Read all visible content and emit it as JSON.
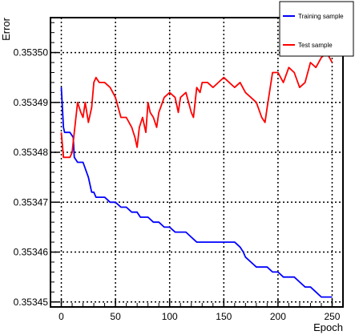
{
  "chart_data": {
    "type": "line",
    "title": "",
    "xlabel": "Epoch",
    "ylabel": "Error",
    "xlim": [
      -10,
      260
    ],
    "ylim": [
      0.353449,
      0.353507
    ],
    "xticks": [
      0,
      50,
      100,
      150,
      200,
      250
    ],
    "yticks": [
      0.35345,
      0.35346,
      0.35347,
      0.35348,
      0.35349,
      0.3535
    ],
    "ytick_labels": [
      "0.35345",
      "0.35346",
      "0.35347",
      "0.35348",
      "0.35349",
      "0.35350"
    ],
    "grid": true,
    "legend_position": "top-right",
    "series": [
      {
        "name": "Training sample",
        "color": "#0000ff",
        "x": [
          0,
          2,
          3,
          5,
          8,
          11,
          12,
          15,
          18,
          20,
          25,
          28,
          30,
          32,
          35,
          40,
          45,
          50,
          55,
          60,
          65,
          70,
          73,
          75,
          80,
          85,
          90,
          95,
          100,
          105,
          110,
          115,
          120,
          125,
          130,
          135,
          140,
          145,
          150,
          155,
          160,
          165,
          168,
          170,
          175,
          180,
          185,
          190,
          195,
          200,
          205,
          210,
          215,
          220,
          225,
          230,
          235,
          240,
          245,
          250
        ],
        "values": [
          0.353493,
          0.353485,
          0.353484,
          0.353484,
          0.353484,
          0.353483,
          0.353479,
          0.353478,
          0.353478,
          0.353478,
          0.353475,
          0.353472,
          0.353472,
          0.353471,
          0.353471,
          0.353471,
          0.35347,
          0.35347,
          0.353469,
          0.353469,
          0.353468,
          0.353468,
          0.353467,
          0.353467,
          0.353467,
          0.353466,
          0.353466,
          0.353465,
          0.353465,
          0.353464,
          0.353464,
          0.353464,
          0.353463,
          0.353462,
          0.353462,
          0.353462,
          0.353462,
          0.353462,
          0.353462,
          0.353462,
          0.353462,
          0.353461,
          0.35346,
          0.353459,
          0.353458,
          0.353457,
          0.353457,
          0.353457,
          0.353456,
          0.353456,
          0.353455,
          0.353455,
          0.353455,
          0.353454,
          0.353453,
          0.353453,
          0.353452,
          0.353451,
          0.353451,
          0.353451
        ]
      },
      {
        "name": "Test sample",
        "color": "#ff0000",
        "x": [
          0,
          2,
          3,
          5,
          8,
          10,
          12,
          15,
          18,
          20,
          22,
          25,
          28,
          30,
          32,
          35,
          38,
          40,
          45,
          50,
          55,
          60,
          65,
          68,
          70,
          72,
          75,
          78,
          80,
          82,
          85,
          88,
          90,
          95,
          100,
          105,
          108,
          110,
          115,
          120,
          122,
          125,
          128,
          130,
          135,
          140,
          145,
          150,
          155,
          160,
          165,
          170,
          175,
          180,
          185,
          188,
          190,
          195,
          200,
          205,
          210,
          215,
          220,
          225,
          230,
          235,
          240,
          245,
          250
        ],
        "values": [
          0.353484,
          0.353479,
          0.353479,
          0.353479,
          0.353479,
          0.35348,
          0.353484,
          0.35349,
          0.353488,
          0.353487,
          0.35349,
          0.353486,
          0.353489,
          0.353494,
          0.353495,
          0.353494,
          0.353494,
          0.353494,
          0.353493,
          0.353491,
          0.353487,
          0.353487,
          0.353485,
          0.353483,
          0.353481,
          0.353485,
          0.353487,
          0.353484,
          0.35349,
          0.353488,
          0.353487,
          0.353485,
          0.353488,
          0.353491,
          0.353492,
          0.353491,
          0.353488,
          0.353491,
          0.353492,
          0.353488,
          0.353487,
          0.353493,
          0.353492,
          0.353494,
          0.353494,
          0.353493,
          0.353494,
          0.353495,
          0.353494,
          0.353493,
          0.353494,
          0.353492,
          0.353491,
          0.35349,
          0.353487,
          0.353486,
          0.353489,
          0.353496,
          0.353496,
          0.353494,
          0.353497,
          0.353496,
          0.353493,
          0.353494,
          0.353498,
          0.353497,
          0.353499,
          0.3535,
          0.353498
        ]
      }
    ]
  }
}
